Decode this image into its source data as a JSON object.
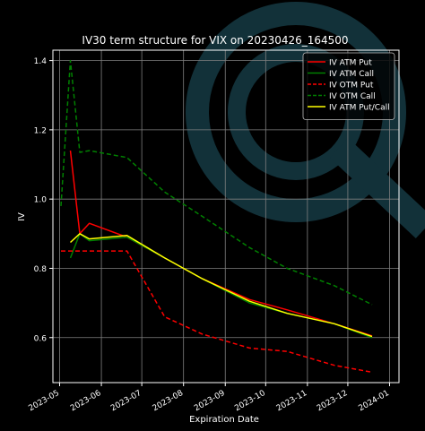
{
  "colors": {
    "background": "#000000",
    "axes": "#ffffff",
    "grid": "#7f7f7f",
    "watermark": "#163a44"
  },
  "watermark": {
    "icon": "q-logo-watermark"
  },
  "chart_data": {
    "type": "line",
    "title": "IV30 term structure for VIX on 20230426_164500",
    "xlabel": "Expiration Date",
    "ylabel": "IV",
    "xlim": [
      "2023-04-26",
      "2024-01-08"
    ],
    "ylim": [
      0.47,
      1.43
    ],
    "xticks": [
      {
        "date": "2023-05-01",
        "label": "2023-05"
      },
      {
        "date": "2023-06-01",
        "label": "2023-06"
      },
      {
        "date": "2023-07-01",
        "label": "2023-07"
      },
      {
        "date": "2023-08-01",
        "label": "2023-08"
      },
      {
        "date": "2023-09-01",
        "label": "2023-09"
      },
      {
        "date": "2023-10-01",
        "label": "2023-10"
      },
      {
        "date": "2023-11-01",
        "label": "2023-11"
      },
      {
        "date": "2023-12-01",
        "label": "2023-12"
      },
      {
        "date": "2024-01-01",
        "label": "2024-01"
      }
    ],
    "yticks": [
      {
        "value": 0.6,
        "label": "0.6"
      },
      {
        "value": 0.8,
        "label": "0.8"
      },
      {
        "value": 1.0,
        "label": "1.0"
      },
      {
        "value": 1.2,
        "label": "1.2"
      },
      {
        "value": 1.4,
        "label": "1.4"
      }
    ],
    "grid": true,
    "legend_position": "top-right",
    "x": [
      "2023-05-02",
      "2023-05-09",
      "2023-05-16",
      "2023-05-23",
      "2023-06-20",
      "2023-07-18",
      "2023-08-15",
      "2023-09-19",
      "2023-10-17",
      "2023-11-21",
      "2023-12-19"
    ],
    "series": [
      {
        "name": "IV ATM Put",
        "color": "#ff0000",
        "dash": "solid",
        "x": [
          "2023-05-09",
          "2023-05-16",
          "2023-05-23",
          "2023-06-20",
          "2023-07-18",
          "2023-08-15",
          "2023-09-19",
          "2023-10-17",
          "2023-11-21",
          "2023-12-19"
        ],
        "values": [
          1.14,
          0.9,
          0.93,
          0.89,
          0.83,
          0.77,
          0.71,
          0.68,
          0.64,
          0.605
        ]
      },
      {
        "name": "IV ATM Call",
        "color": "#008000",
        "dash": "solid",
        "x": [
          "2023-05-09",
          "2023-05-16",
          "2023-05-23",
          "2023-06-20",
          "2023-07-18",
          "2023-08-15",
          "2023-09-19",
          "2023-10-17",
          "2023-11-21",
          "2023-12-19"
        ],
        "values": [
          0.83,
          0.9,
          0.88,
          0.89,
          0.83,
          0.77,
          0.7,
          0.67,
          0.64,
          0.6
        ]
      },
      {
        "name": "IV OTM Put",
        "color": "#ff0000",
        "dash": "dashed",
        "x": [
          "2023-05-02",
          "2023-05-09",
          "2023-05-16",
          "2023-05-23",
          "2023-06-20",
          "2023-07-18",
          "2023-08-15",
          "2023-09-19",
          "2023-10-17",
          "2023-11-21",
          "2023-12-19"
        ],
        "values": [
          0.85,
          0.85,
          0.85,
          0.85,
          0.85,
          0.66,
          0.61,
          0.57,
          0.56,
          0.52,
          0.5
        ]
      },
      {
        "name": "IV OTM Call",
        "color": "#008000",
        "dash": "dashed",
        "x": [
          "2023-05-02",
          "2023-05-09",
          "2023-05-16",
          "2023-05-23",
          "2023-06-20",
          "2023-07-18",
          "2023-08-15",
          "2023-09-19",
          "2023-10-17",
          "2023-11-21",
          "2023-12-19"
        ],
        "values": [
          0.98,
          1.4,
          1.135,
          1.14,
          1.12,
          1.02,
          0.95,
          0.86,
          0.8,
          0.75,
          0.695
        ]
      },
      {
        "name": "IV ATM Put/Call",
        "color": "#ffff00",
        "dash": "solid",
        "x": [
          "2023-05-09",
          "2023-05-16",
          "2023-05-23",
          "2023-06-20",
          "2023-07-18",
          "2023-08-15",
          "2023-09-19",
          "2023-10-17",
          "2023-11-21",
          "2023-12-19"
        ],
        "values": [
          0.875,
          0.9,
          0.885,
          0.895,
          0.83,
          0.77,
          0.705,
          0.67,
          0.64,
          0.603
        ]
      }
    ]
  }
}
